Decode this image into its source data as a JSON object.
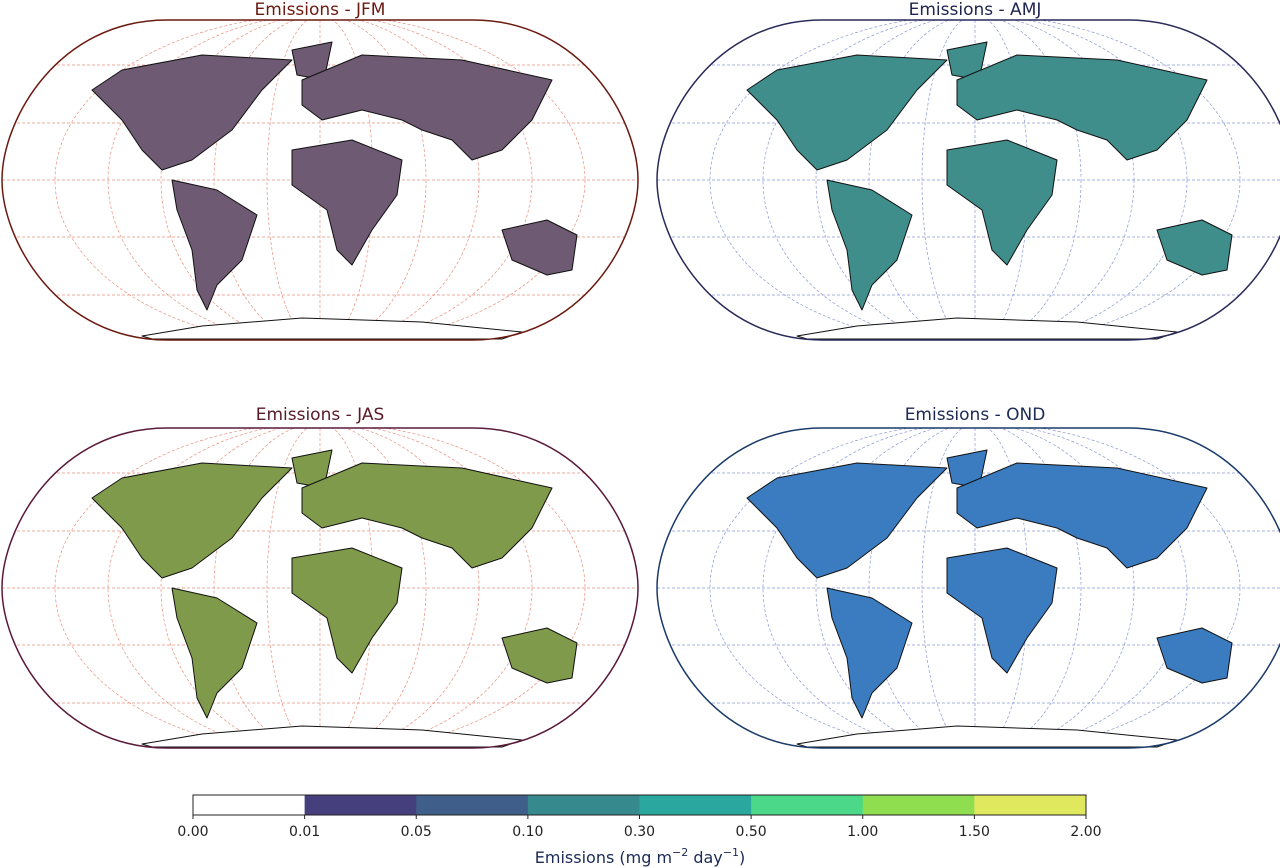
{
  "maps": [
    {
      "title": "Emissions - JFM"
    },
    {
      "title": "Emissions - AMJ"
    },
    {
      "title": "Emissions - JAS"
    },
    {
      "title": "Emissions - OND"
    }
  ],
  "colorbar": {
    "label_parts": [
      "Emissions (mg m",
      "−2",
      " day",
      "−1",
      ")"
    ],
    "ticks": [
      {
        "value": 0,
        "label": "0.00"
      },
      {
        "value": 0.01,
        "label": "0.01"
      },
      {
        "value": 0.05,
        "label": "0.05"
      },
      {
        "value": 0.1,
        "label": "0.10"
      },
      {
        "value": 0.3,
        "label": "0.30"
      },
      {
        "value": 0.5,
        "label": "0.50"
      },
      {
        "value": 1,
        "label": "1.00"
      },
      {
        "value": 1.5,
        "label": "1.50"
      },
      {
        "value": 2,
        "label": "2.00"
      }
    ],
    "colors": [
      "#ffffff",
      "#453f7d",
      "#3f5f8a",
      "#36898c",
      "#2aa8a0",
      "#4bd888",
      "#8ede4f",
      "#e0e85e"
    ]
  }
}
